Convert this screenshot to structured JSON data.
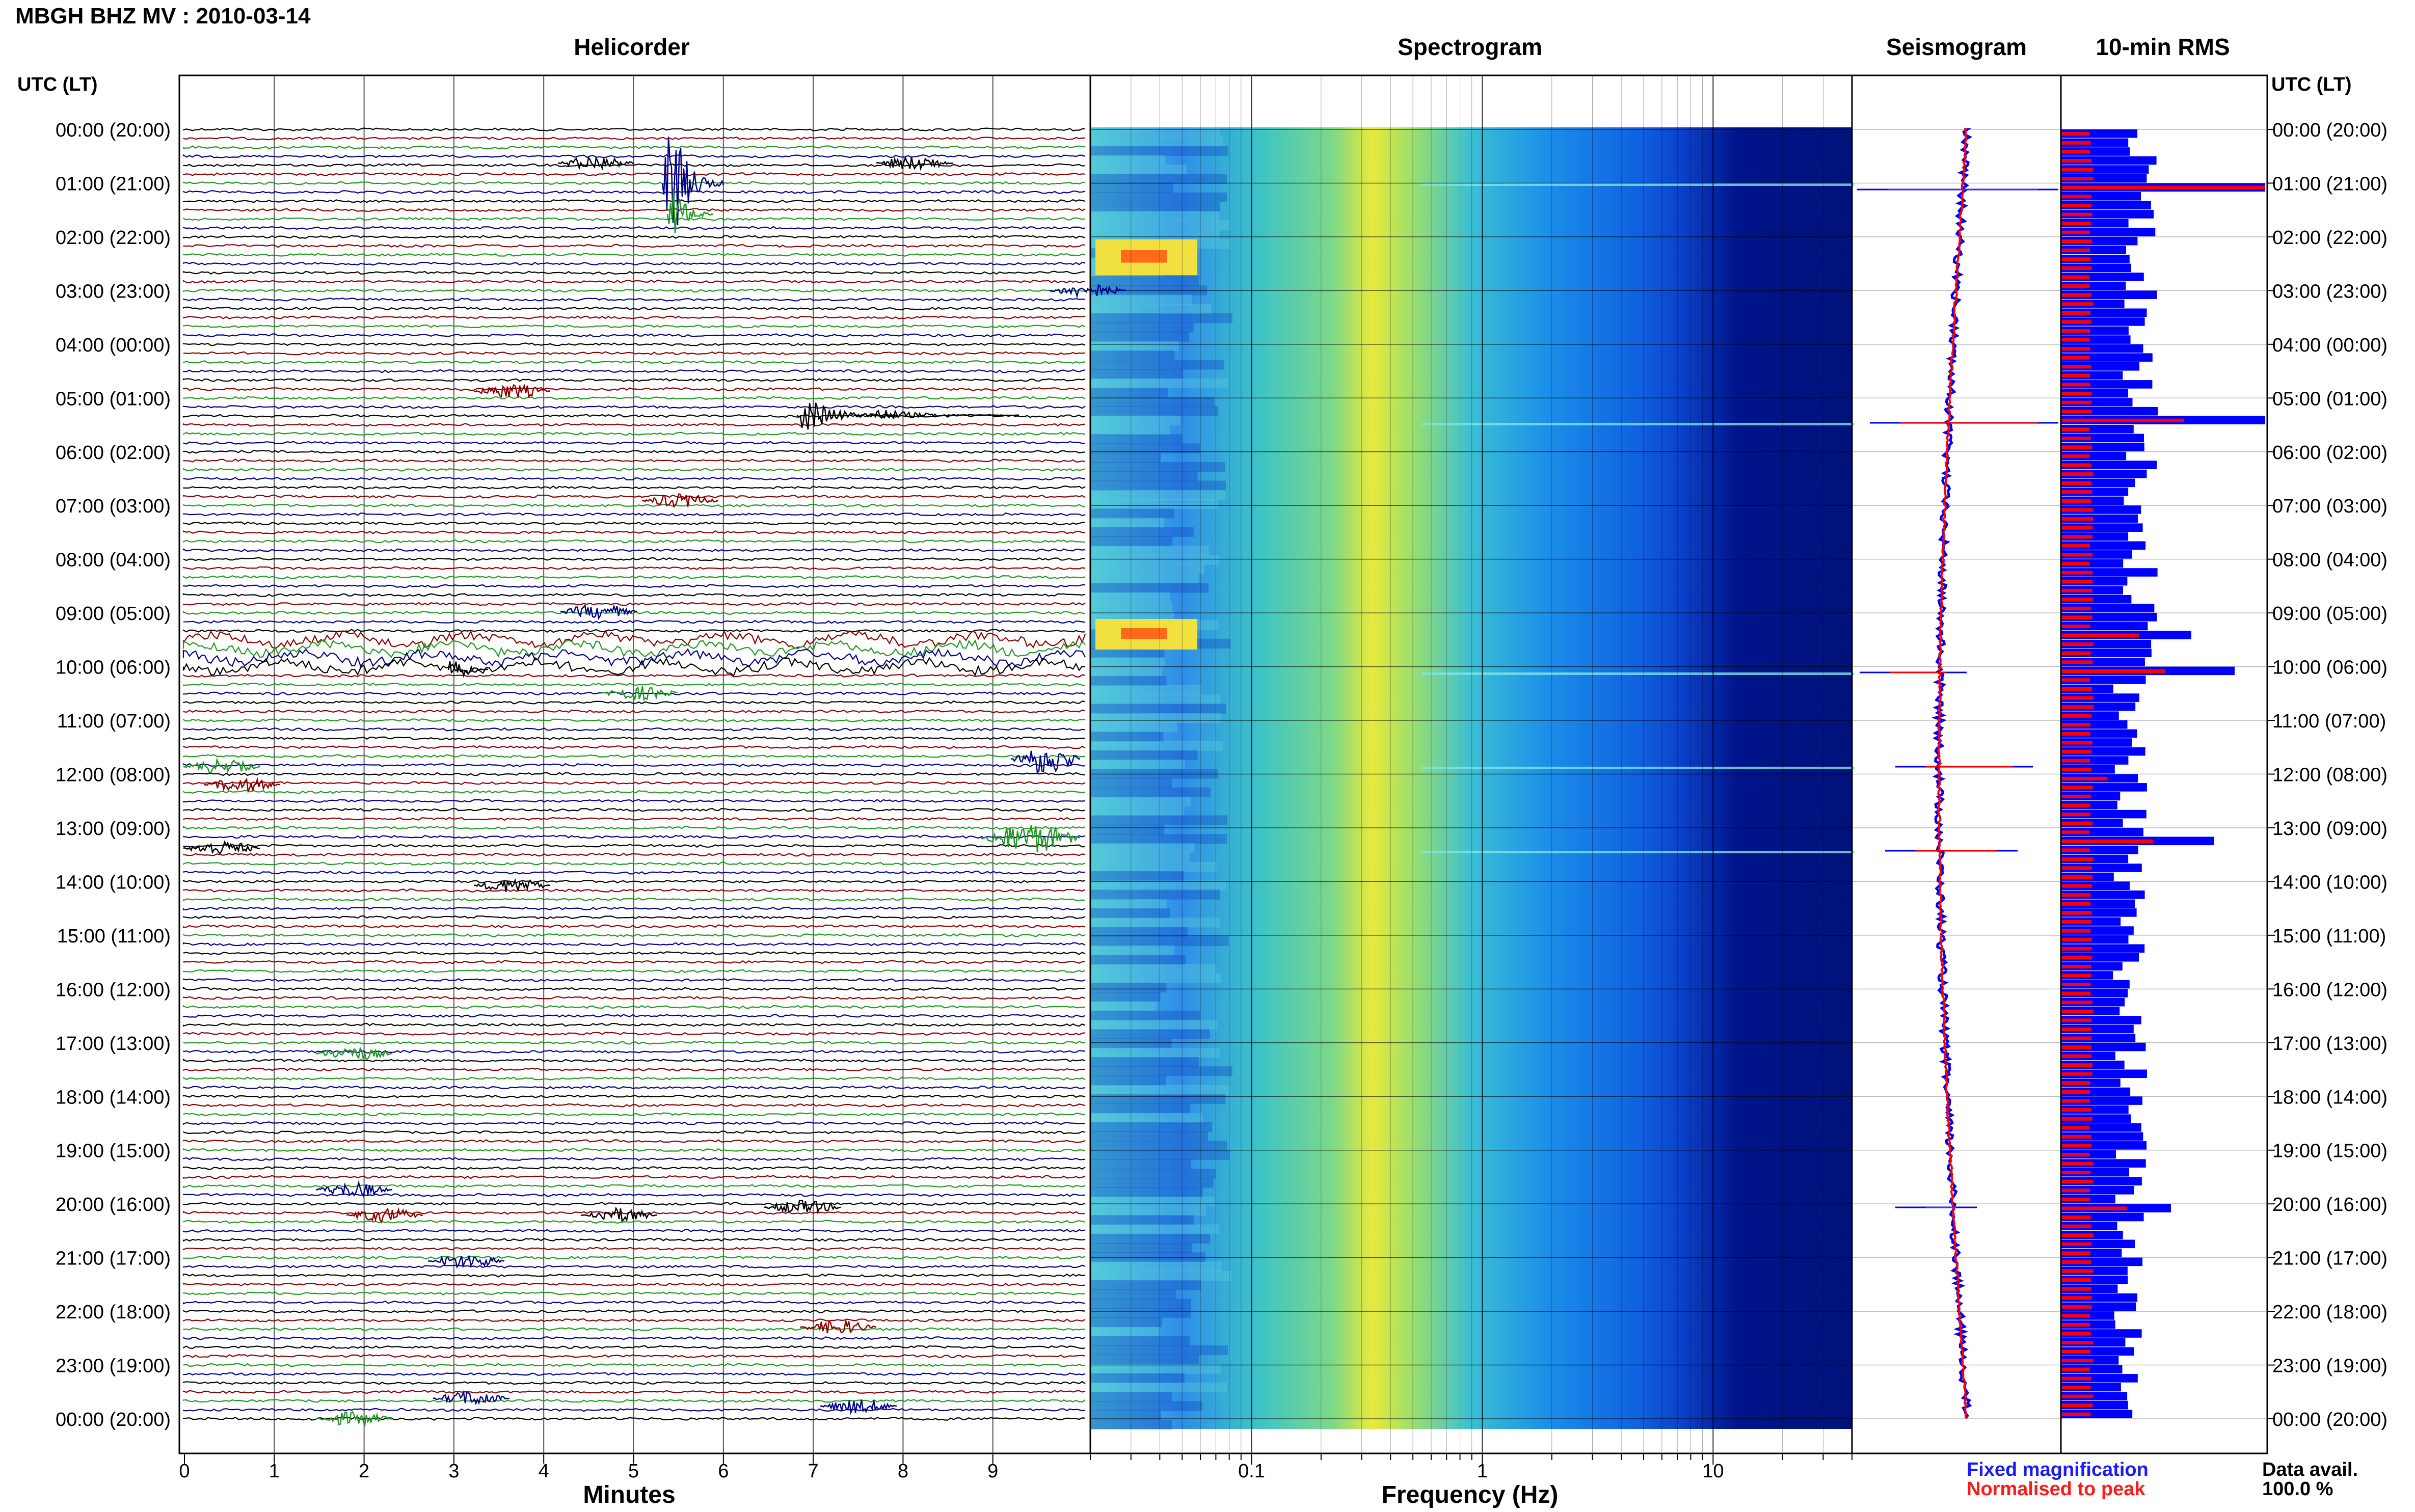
{
  "header": {
    "station_title": "MBGH BHZ MV : 2010-03-14"
  },
  "panels": {
    "helicorder": "Helicorder",
    "spectrogram": "Spectrogram",
    "seismogram": "Seismogram",
    "rms": "10-min RMS"
  },
  "axis_titles": {
    "left_time": "UTC (LT)",
    "right_time": "UTC (LT)",
    "helicorder_x": "Minutes",
    "spectrogram_x": "Frequency (Hz)"
  },
  "time_labels": [
    "00:00 (20:00)",
    "01:00 (21:00)",
    "02:00 (22:00)",
    "03:00 (23:00)",
    "04:00 (00:00)",
    "05:00 (01:00)",
    "06:00 (02:00)",
    "07:00 (03:00)",
    "08:00 (04:00)",
    "09:00 (05:00)",
    "10:00 (06:00)",
    "11:00 (07:00)",
    "12:00 (08:00)",
    "13:00 (09:00)",
    "14:00 (10:00)",
    "15:00 (11:00)",
    "16:00 (12:00)",
    "17:00 (13:00)",
    "18:00 (14:00)",
    "19:00 (15:00)",
    "20:00 (16:00)",
    "21:00 (17:00)",
    "22:00 (18:00)",
    "23:00 (19:00)",
    "00:00 (20:00)"
  ],
  "minute_ticks": [
    "0",
    "1",
    "2",
    "3",
    "4",
    "5",
    "6",
    "7",
    "8",
    "9"
  ],
  "frequency_ticks": [
    "0.1",
    "1",
    "10"
  ],
  "legend": {
    "fixed": "Fixed magnification",
    "normalised": "Normalised to peak",
    "fixed_color": "#1a1aff",
    "normalised_color": "#ff1a1a"
  },
  "data_avail": {
    "label": "Data avail.",
    "value": "100.0 %"
  },
  "colors": {
    "trace_cycle": [
      "#000000",
      "#8b0000",
      "#1f9a1f",
      "#00008b"
    ],
    "rms_fixed": "#0000ff",
    "rms_normalised": "#ff0000"
  },
  "chart_data": {
    "type": "helicorder",
    "x_minutes_range": [
      0,
      10
    ],
    "frequency_range_hz": [
      0.02,
      40
    ],
    "frequency_scale": "log",
    "time_range_utc_hours": [
      0,
      24
    ],
    "events": [
      {
        "utc": "00:50",
        "minute": 5.5,
        "row_span": 12
      },
      {
        "utc": "05:10",
        "minute": 7.5,
        "row_span": 3
      },
      {
        "utc": "09:30",
        "minute": 3.3,
        "row_span": 3
      },
      {
        "utc": "11:50",
        "minute": 9.6,
        "row_span": 2
      },
      {
        "utc": "13:00",
        "minute": 9.5,
        "row_span": 2
      },
      {
        "utc": "20:00",
        "minute": 7.0,
        "row_span": 1
      }
    ],
    "rms_peaks_utc": [
      "01:00",
      "05:20",
      "09:20",
      "10:00",
      "12:00",
      "13:10",
      "20:00"
    ]
  }
}
